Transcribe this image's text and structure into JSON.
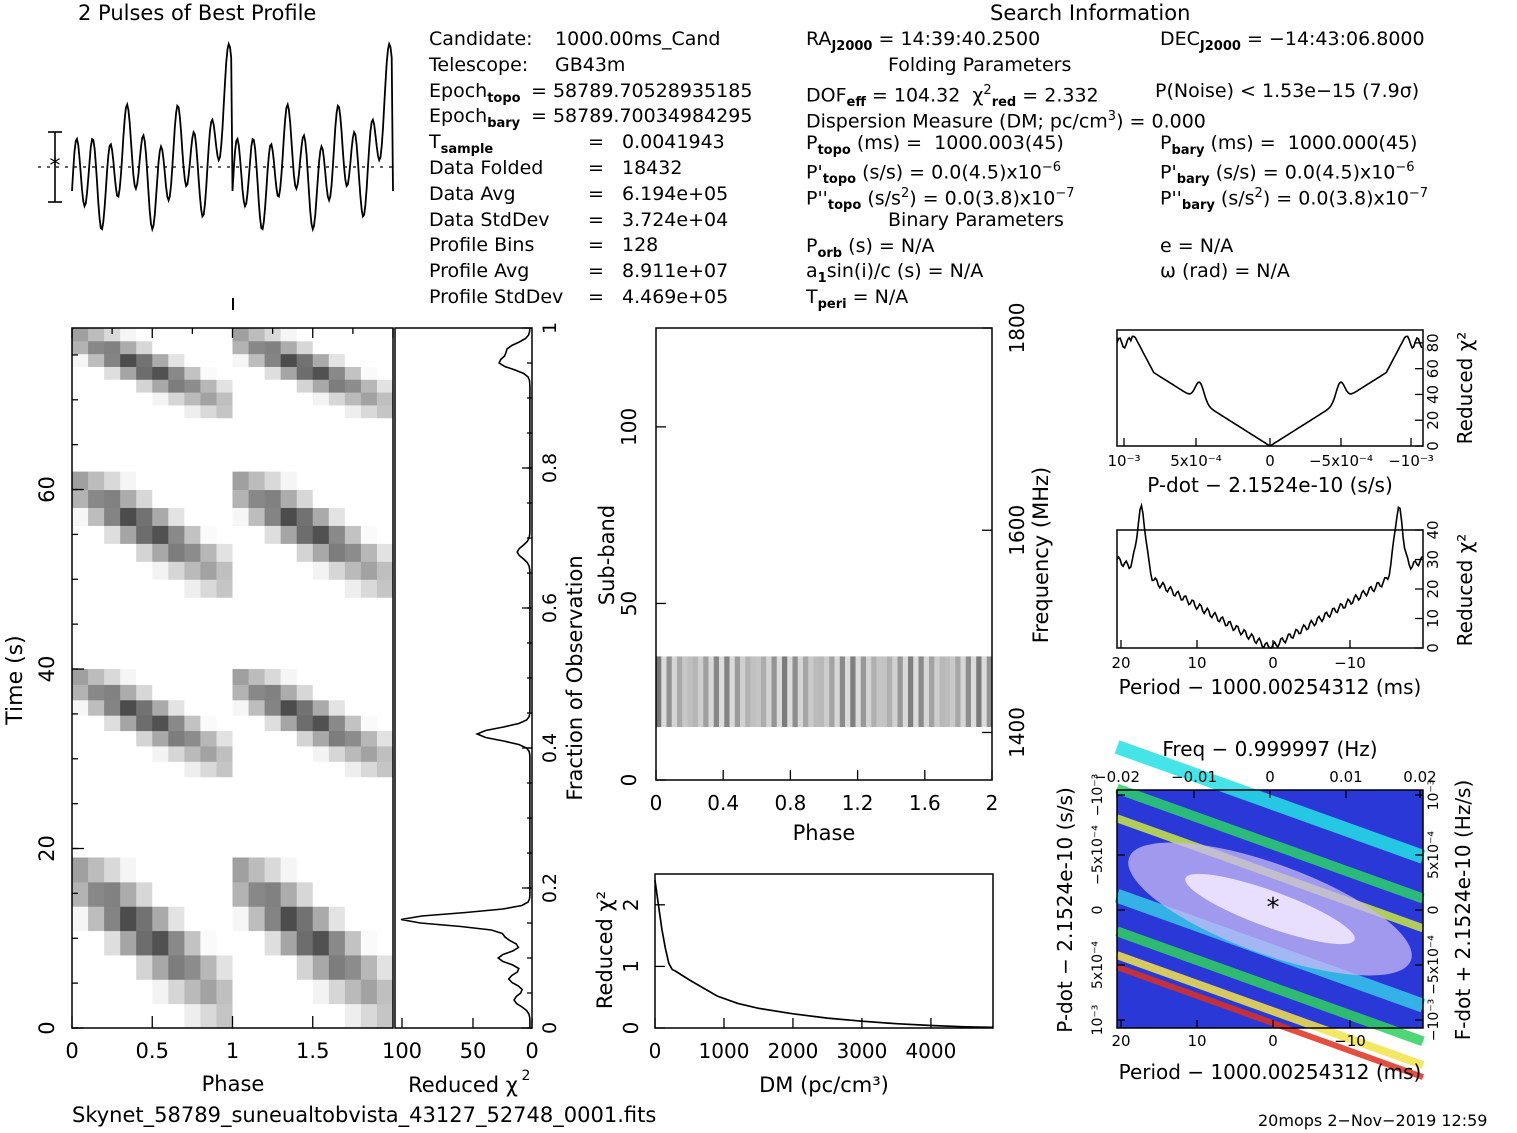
{
  "header": {
    "profile_title": "2 Pulses of Best Profile",
    "search_title": "Search Information"
  },
  "info_left": [
    [
      "Candidate:",
      "1000.00ms_Cand"
    ],
    [
      "Telescope:",
      "GB43m"
    ],
    [
      "Epoch_topo",
      "= 58789.70528935185"
    ],
    [
      "Epoch_bary",
      "= 58789.70034984295"
    ],
    [
      "T_sample",
      "=",
      "0.0041943"
    ],
    [
      "Data Folded",
      "=",
      "18432"
    ],
    [
      "Data Avg",
      "=",
      "6.194e+05"
    ],
    [
      "Data StdDev",
      "=",
      "3.724e+04"
    ],
    [
      "Profile Bins",
      "=",
      "128"
    ],
    [
      "Profile Avg",
      "=",
      "8.911e+07"
    ],
    [
      "Profile StdDev",
      "=",
      "4.469e+05"
    ]
  ],
  "info_mid": {
    "ra": "RA_J2000 = 14:39:40.2500",
    "folding": "Folding Parameters",
    "dof": "DOF_eff = 104.32  χ²_red = 2.332",
    "dm": "Dispersion Measure (DM; pc/cm³) = 0.000",
    "ptopo": "P_topo (ms) =  1000.003(45)",
    "pdtopo": "P'_topo (s/s) = 0.0(4.5)x10⁻⁶",
    "pddtopo": "P''_topo (s/s²) = 0.0(3.8)x10⁻⁷",
    "binary": "Binary Parameters",
    "porb": "P_orb (s) = N/A",
    "a1": "a₁sin(i)/c (s) = N/A",
    "tperi": "T_peri = N/A"
  },
  "info_right": {
    "dec": "DEC_J2000 = −14:43:06.8000",
    "pnoise": "P(Noise) < 1.53e−15  (7.9σ)",
    "pbary": "P_bary (ms) =  1000.000(45)",
    "pdbary": "P'_bary (s/s) = 0.0(4.5)x10⁻⁶",
    "pddbary": "P''_bary (s/s²) = 0.0(3.8)x10⁻⁷",
    "e": "e = N/A",
    "omega": "ω (rad) = N/A"
  },
  "footer": {
    "filename": "Skynet_58789_suneualtobvista_43127_52748_0001.fits",
    "stamp": "20mops   2−Nov−2019 12:59"
  },
  "colors": {
    "ink": "#000000",
    "gray_dark": "#222222",
    "heat_hot": "#e0301e",
    "heat_cool": "#2233cc"
  },
  "chart_data": [
    {
      "type": "line",
      "id": "profile",
      "title": "2 Pulses of Best Profile",
      "xlim": [
        0,
        2
      ],
      "note": "profile repeated twice"
    },
    {
      "type": "heatmap",
      "id": "time_phase",
      "xlabel": "Phase",
      "ylabel": "Time (s)",
      "xticks": [
        "0",
        "0.5",
        "1",
        "1.5"
      ],
      "yticks": [
        "0",
        "20",
        "40",
        "60"
      ],
      "xlim": [
        0,
        2
      ],
      "ylim": [
        0,
        78
      ]
    },
    {
      "type": "line",
      "id": "reduced_chi2_time",
      "xlabel": "Reduced χ²",
      "ylabel": "Fraction of Observation",
      "xticks": [
        "100",
        "50",
        "0"
      ],
      "yticks": [
        "0",
        "0.2",
        "0.4",
        "0.6",
        "0.8",
        "1"
      ]
    },
    {
      "type": "heatmap",
      "id": "subband_phase",
      "xlabel": "Phase",
      "ylabel": "Sub-band",
      "y2label": "Frequency (MHz)",
      "xticks": [
        "0",
        "0.4",
        "0.8",
        "1.2",
        "1.6",
        "2"
      ],
      "yticks": [
        "0",
        "50",
        "100"
      ],
      "y2ticks": [
        "1400",
        "1600",
        "1800"
      ],
      "xlim": [
        0,
        2
      ],
      "ylim": [
        0,
        128
      ],
      "active_subbands": [
        15,
        35
      ]
    },
    {
      "type": "line",
      "id": "dm_curve",
      "xlabel": "DM (pc/cm³)",
      "ylabel": "Reduced χ²",
      "xticks": [
        "0",
        "1000",
        "2000",
        "3000",
        "4000"
      ],
      "yticks": [
        "0",
        "1",
        "2"
      ],
      "xlim": [
        0,
        4900
      ],
      "ylim": [
        0,
        2.5
      ],
      "x": [
        0,
        50,
        100,
        150,
        200,
        250,
        300,
        400,
        500,
        700,
        900,
        1200,
        1500,
        2000,
        2500,
        3000,
        3500,
        4000,
        4500,
        4900
      ],
      "y": [
        2.4,
        2.0,
        1.6,
        1.3,
        1.05,
        0.95,
        0.92,
        0.85,
        0.78,
        0.65,
        0.52,
        0.4,
        0.32,
        0.23,
        0.16,
        0.11,
        0.07,
        0.04,
        0.02,
        0.01
      ]
    },
    {
      "type": "line",
      "id": "pdot_curve",
      "xlabel": "P-dot − 2.1524e-10 (s/s)",
      "ylabel": "Reduced χ²",
      "xticks": [
        "10⁻³",
        "5x10⁻⁴",
        "0",
        "−5x10⁻⁴",
        "−10⁻³"
      ],
      "yticks": [
        "0",
        "20",
        "40",
        "60",
        "80"
      ],
      "ylim": [
        0,
        90
      ]
    },
    {
      "type": "line",
      "id": "period_curve",
      "xlabel": "Period − 1000.00254312 (ms)",
      "ylabel": "Reduced χ²",
      "xticks": [
        "20",
        "10",
        "0",
        "−10"
      ],
      "yticks": [
        "0",
        "10",
        "20",
        "30",
        "40"
      ],
      "ylim": [
        0,
        40
      ]
    },
    {
      "type": "heatmap",
      "id": "p_pdot_plane",
      "title": "Freq − 0.999997 (Hz)",
      "xlabel": "Period − 1000.00254312 (ms)",
      "ylabel": "P-dot − 2.1524e-10 (s/s)",
      "y2label": "F-dot + 2.1524e-10 (Hz/s)",
      "xticks": [
        "20",
        "10",
        "0",
        "−10"
      ],
      "x2ticks": [
        "−0.02",
        "−0.01",
        "0",
        "0.01",
        "0.02"
      ],
      "yticks": [
        "10⁻³",
        "5x10⁻⁴",
        "0",
        "−5x10⁻⁴",
        "−10⁻³"
      ],
      "y2ticks": [
        "−10⁻³",
        "−5x10⁻⁴",
        "0",
        "5x10⁻⁴",
        "10⁻³"
      ]
    }
  ]
}
